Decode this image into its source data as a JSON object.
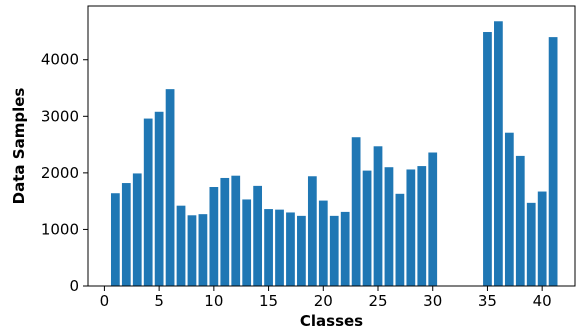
{
  "chart_data": {
    "type": "bar",
    "title": "",
    "xlabel": "Classes",
    "ylabel": "Data Samples",
    "xlim": [
      -1.5,
      43
    ],
    "ylim": [
      0,
      4950
    ],
    "xticks": [
      0,
      5,
      10,
      15,
      20,
      25,
      30,
      35,
      40
    ],
    "yticks": [
      0,
      1000,
      2000,
      3000,
      4000
    ],
    "grid": false,
    "bar_color": "#1f77b4",
    "x": [
      1,
      2,
      3,
      4,
      5,
      6,
      7,
      8,
      9,
      10,
      11,
      12,
      13,
      14,
      15,
      16,
      17,
      18,
      19,
      20,
      21,
      22,
      23,
      24,
      25,
      26,
      27,
      28,
      29,
      30,
      35,
      36,
      37,
      38,
      39,
      40,
      41
    ],
    "values": [
      1640,
      1820,
      1990,
      2960,
      3080,
      3480,
      1420,
      1250,
      1270,
      1750,
      1910,
      1950,
      1530,
      1770,
      1360,
      1350,
      1300,
      1240,
      1940,
      1510,
      1240,
      1310,
      2630,
      2040,
      2470,
      2100,
      1630,
      2060,
      2120,
      2360,
      4490,
      4680,
      2710,
      2300,
      1470,
      1670,
      4400
    ]
  }
}
